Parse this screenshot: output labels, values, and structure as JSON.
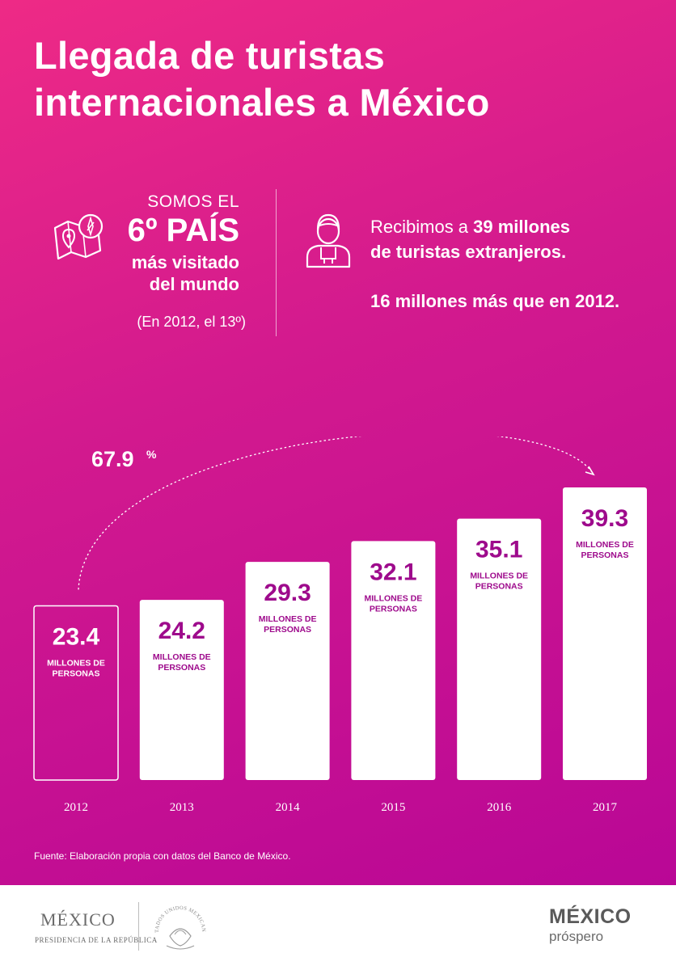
{
  "title": {
    "line1": "Llegada de turistas",
    "line2": "internacionales a México"
  },
  "rank_stat": {
    "prefix": "SOMOS EL",
    "rank": "6º PAÍS",
    "line1": "más visitado",
    "line2": "del mundo",
    "note": "(En 2012, el 13º)",
    "icon": "map-compass-icon"
  },
  "tourists_stat": {
    "line1_pre": "Recibimos a ",
    "line1_bold": "39 millones",
    "line2": "de turistas extranjeros.",
    "increase": "16 millones más que en 2012.",
    "icon": "tourist-person-icon"
  },
  "chart_data": {
    "type": "bar",
    "categories": [
      "2012",
      "2013",
      "2014",
      "2015",
      "2016",
      "2017"
    ],
    "values": [
      23.4,
      24.2,
      29.3,
      32.1,
      35.1,
      39.3
    ],
    "value_labels": [
      "23.4",
      "24.2",
      "29.3",
      "32.1",
      "35.1",
      "39.3"
    ],
    "unit_line1": "MILLONES DE",
    "unit_line2": "PERSONAS",
    "growth_label": "67.9",
    "growth_unit": "%",
    "highlight_outline_index": 0,
    "bar_color": "#ffffff",
    "label_color": "#9e0a8c",
    "ylim": [
      0,
      40
    ]
  },
  "source": "Fuente: Elaboración propia con datos del Banco de México.",
  "footer": {
    "gov_name": "MÉXICO",
    "gov_sub": "PRESIDENCIA DE LA REPÚBLICA",
    "seal_text": "ESTADOS UNIDOS MEXICANOS",
    "brand_line1": "MÉXICO",
    "brand_line2": "próspero"
  },
  "colors": {
    "gradient_top": "#ee2a86",
    "gradient_bottom": "#b90796",
    "accent": "#9e0a8c",
    "footer_text": "#5a5a5a"
  }
}
